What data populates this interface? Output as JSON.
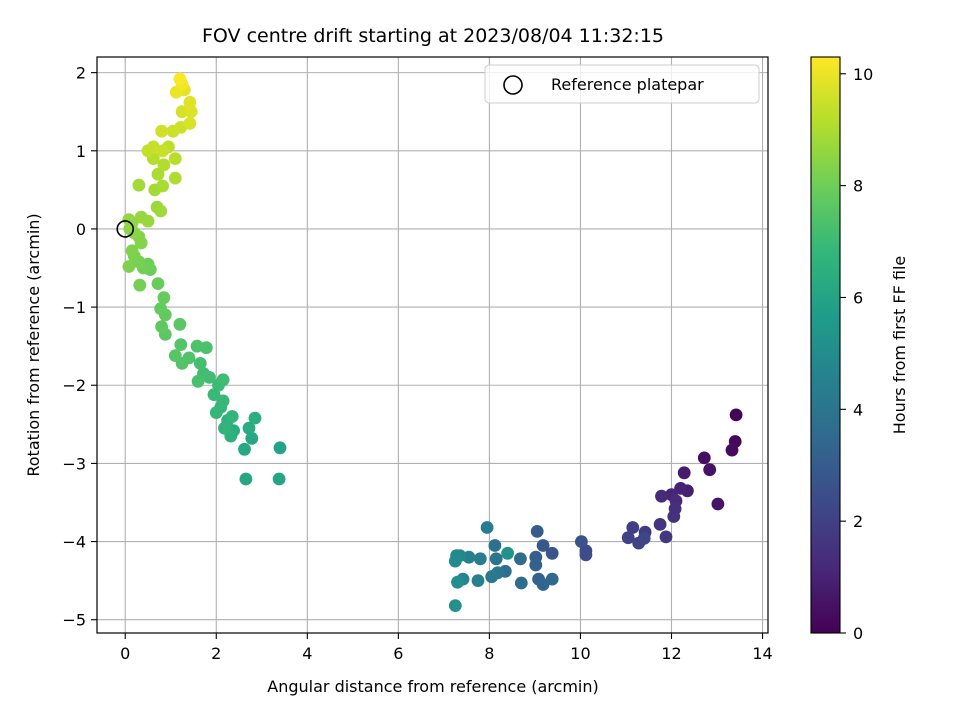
{
  "chart_data": {
    "type": "scatter",
    "title": "FOV centre drift starting at 2023/08/04 11:32:15",
    "xlabel": "Angular distance from reference (arcmin)",
    "ylabel": "Rotation from reference (arcmin)",
    "xlim": [
      -0.62,
      14.12
    ],
    "ylim": [
      -5.17,
      2.2
    ],
    "xticks": [
      0,
      2,
      4,
      6,
      8,
      10,
      12,
      14
    ],
    "yticks": [
      -5,
      -4,
      -3,
      -2,
      -1,
      0,
      1,
      2
    ],
    "xtick_labels": [
      "0",
      "2",
      "4",
      "6",
      "8",
      "10",
      "12",
      "14"
    ],
    "ytick_labels": [
      "−5",
      "−4",
      "−3",
      "−2",
      "−1",
      "0",
      "1",
      "2"
    ],
    "grid": true,
    "legend": {
      "position": "top-right",
      "entries": [
        {
          "label": "Reference platepar",
          "marker": "open-circle",
          "color": "#000000"
        }
      ]
    },
    "reference_point": {
      "x": 0,
      "y": 0
    },
    "colorbar": {
      "label": "Hours from first FF file",
      "range": [
        0,
        10.3
      ],
      "ticks": [
        0,
        2,
        4,
        6,
        8,
        10
      ],
      "tick_labels": [
        "0",
        "2",
        "4",
        "6",
        "8",
        "10"
      ],
      "colormap": "viridis"
    },
    "points": [
      [
        13.42,
        -2.38,
        0.1
      ],
      [
        13.4,
        -2.72,
        0.2
      ],
      [
        13.33,
        -2.83,
        0.3
      ],
      [
        12.72,
        -2.93,
        0.4
      ],
      [
        12.84,
        -3.08,
        0.5
      ],
      [
        13.02,
        -3.52,
        0.6
      ],
      [
        12.28,
        -3.12,
        0.75
      ],
      [
        12.35,
        -3.35,
        0.9
      ],
      [
        12.2,
        -3.32,
        1.0
      ],
      [
        12.0,
        -3.4,
        1.1
      ],
      [
        12.1,
        -3.48,
        1.2
      ],
      [
        11.78,
        -3.42,
        1.3
      ],
      [
        12.08,
        -3.58,
        1.4
      ],
      [
        12.05,
        -3.68,
        1.5
      ],
      [
        11.75,
        -3.78,
        1.6
      ],
      [
        11.88,
        -3.94,
        1.7
      ],
      [
        11.42,
        -3.88,
        1.8
      ],
      [
        11.15,
        -3.82,
        1.9
      ],
      [
        11.05,
        -3.95,
        2.0
      ],
      [
        11.28,
        -4.02,
        2.1
      ],
      [
        11.4,
        -3.96,
        2.2
      ],
      [
        10.12,
        -4.12,
        2.3
      ],
      [
        10.12,
        -4.17,
        2.45
      ],
      [
        10.02,
        -4.0,
        2.6
      ],
      [
        9.38,
        -4.15,
        2.75
      ],
      [
        9.18,
        -4.05,
        2.85
      ],
      [
        9.05,
        -3.87,
        2.95
      ],
      [
        9.02,
        -4.2,
        3.05
      ],
      [
        9.02,
        -4.3,
        3.15
      ],
      [
        9.08,
        -4.48,
        3.25
      ],
      [
        9.18,
        -4.55,
        3.35
      ],
      [
        9.38,
        -4.48,
        3.45
      ],
      [
        8.68,
        -4.22,
        3.55
      ],
      [
        8.7,
        -4.53,
        3.65
      ],
      [
        8.35,
        -4.38,
        3.75
      ],
      [
        8.12,
        -4.05,
        3.85
      ],
      [
        8.15,
        -4.22,
        3.95
      ],
      [
        8.18,
        -4.4,
        4.05
      ],
      [
        8.05,
        -4.45,
        4.15
      ],
      [
        7.95,
        -3.82,
        4.25
      ],
      [
        7.8,
        -4.22,
        4.35
      ],
      [
        7.75,
        -4.5,
        4.45
      ],
      [
        7.55,
        -4.2,
        4.55
      ],
      [
        7.42,
        -4.48,
        4.65
      ],
      [
        7.35,
        -4.18,
        4.75
      ],
      [
        7.28,
        -4.18,
        4.85
      ],
      [
        7.25,
        -4.25,
        4.95
      ],
      [
        7.3,
        -4.52,
        5.05
      ],
      [
        7.25,
        -4.82,
        5.15
      ],
      [
        8.4,
        -4.15,
        5.25
      ],
      [
        3.4,
        -2.8,
        6.0
      ],
      [
        3.38,
        -3.2,
        6.05
      ],
      [
        2.65,
        -3.2,
        6.1
      ],
      [
        2.62,
        -2.82,
        6.15
      ],
      [
        2.78,
        -2.68,
        6.2
      ],
      [
        2.72,
        -2.55,
        6.3
      ],
      [
        2.85,
        -2.42,
        6.4
      ],
      [
        2.38,
        -2.58,
        6.45
      ],
      [
        2.32,
        -2.65,
        6.5
      ],
      [
        2.25,
        -2.45,
        6.6
      ],
      [
        2.18,
        -2.55,
        6.7
      ],
      [
        2.35,
        -2.4,
        6.75
      ],
      [
        2.1,
        -2.28,
        6.8
      ],
      [
        2.0,
        -2.35,
        6.85
      ],
      [
        2.15,
        -2.2,
        6.9
      ],
      [
        1.95,
        -2.12,
        6.95
      ],
      [
        2.05,
        -2.0,
        7.0
      ],
      [
        2.15,
        -1.93,
        7.05
      ],
      [
        1.85,
        -1.9,
        7.1
      ],
      [
        1.72,
        -1.85,
        7.15
      ],
      [
        1.65,
        -1.72,
        7.2
      ],
      [
        1.6,
        -1.95,
        7.25
      ],
      [
        1.78,
        -1.52,
        7.3
      ],
      [
        1.58,
        -1.5,
        7.35
      ],
      [
        1.4,
        -1.65,
        7.4
      ],
      [
        1.25,
        -1.72,
        7.45
      ],
      [
        1.22,
        -1.48,
        7.5
      ],
      [
        1.1,
        -1.62,
        7.55
      ],
      [
        1.2,
        -1.22,
        7.6
      ],
      [
        0.88,
        -1.35,
        7.65
      ],
      [
        0.8,
        -1.25,
        7.7
      ],
      [
        0.88,
        -1.1,
        7.75
      ],
      [
        0.78,
        -1.02,
        7.8
      ],
      [
        0.85,
        -0.88,
        7.85
      ],
      [
        0.72,
        -0.7,
        7.9
      ],
      [
        0.55,
        -0.52,
        7.95
      ],
      [
        0.5,
        -0.45,
        8.0
      ],
      [
        0.4,
        -0.5,
        8.05
      ],
      [
        0.32,
        -0.72,
        8.1
      ],
      [
        0.3,
        -0.42,
        8.15
      ],
      [
        0.2,
        -0.35,
        8.2
      ],
      [
        0.08,
        -0.48,
        8.25
      ],
      [
        0.15,
        -0.28,
        8.3
      ],
      [
        0.35,
        -0.18,
        8.35
      ],
      [
        0.3,
        -0.1,
        8.4
      ],
      [
        0.2,
        -0.05,
        8.45
      ],
      [
        0.1,
        0.0,
        8.5
      ],
      [
        0.15,
        0.08,
        8.55
      ],
      [
        0.08,
        0.12,
        8.6
      ],
      [
        0.35,
        0.15,
        8.65
      ],
      [
        0.5,
        0.1,
        8.7
      ],
      [
        0.7,
        0.28,
        8.75
      ],
      [
        0.78,
        0.23,
        8.8
      ],
      [
        0.3,
        0.56,
        8.85
      ],
      [
        0.65,
        0.5,
        8.9
      ],
      [
        0.82,
        0.55,
        8.95
      ],
      [
        0.72,
        0.7,
        9.0
      ],
      [
        1.1,
        0.65,
        9.05
      ],
      [
        0.85,
        0.82,
        9.1
      ],
      [
        0.62,
        0.9,
        9.15
      ],
      [
        1.1,
        0.9,
        9.2
      ],
      [
        0.95,
        1.05,
        9.3
      ],
      [
        0.5,
        1.0,
        9.35
      ],
      [
        0.62,
        1.05,
        9.4
      ],
      [
        0.82,
        1.0,
        9.45
      ],
      [
        1.05,
        1.25,
        9.5
      ],
      [
        1.22,
        1.3,
        9.55
      ],
      [
        0.8,
        1.25,
        9.6
      ],
      [
        1.25,
        1.5,
        9.65
      ],
      [
        1.42,
        1.35,
        9.7
      ],
      [
        1.45,
        1.5,
        9.75
      ],
      [
        1.42,
        1.62,
        9.8
      ],
      [
        1.3,
        1.78,
        9.9
      ],
      [
        1.12,
        1.75,
        10.0
      ],
      [
        1.25,
        1.85,
        10.1
      ],
      [
        1.2,
        1.92,
        10.25
      ]
    ]
  }
}
